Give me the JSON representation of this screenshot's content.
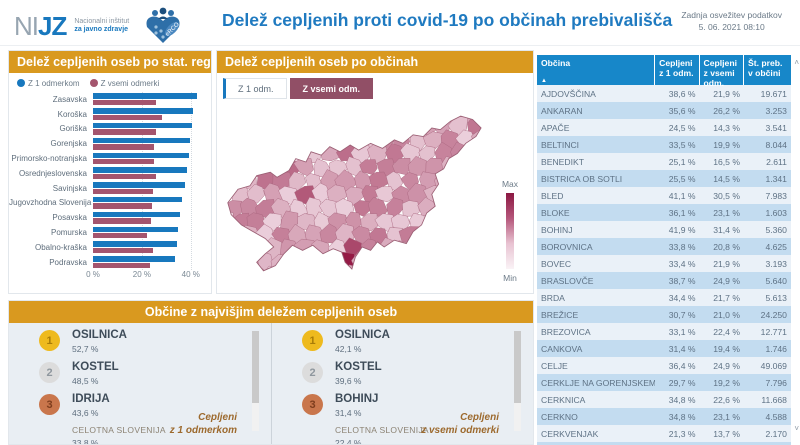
{
  "header": {
    "logo_ni": "NI",
    "logo_jz": "JZ",
    "logo_sub1": "Nacionalni inštitut",
    "logo_sub2": "za javno zdravje",
    "erco_label": "eRCO",
    "title": "Delež cepljenih proti covid-19 po občinah prebivališča",
    "refresh_label": "Zadnja osvežitev podatkov",
    "refresh_time": "5. 06. 2021 08:10"
  },
  "colors": {
    "accent_orange": "#d9991f",
    "bar_blue": "#1878be",
    "bar_maroon": "#a4556e",
    "table_header_blue": "#1787c9",
    "map_max": "#8c1843",
    "map_min": "#faf3f6",
    "button_active_maroon": "#914f66"
  },
  "region_panel": {
    "title": "Delež cepljenih oseb po stat. regijah",
    "legend": [
      {
        "label": "Z 1 odmerkom",
        "color": "#1878be"
      },
      {
        "label": "Z vsemi odmerki",
        "color": "#a4556e"
      }
    ]
  },
  "chart_data": {
    "type": "bar",
    "orientation": "horizontal",
    "title": "Delež cepljenih oseb po stat. regijah",
    "categories": [
      "Zasavska",
      "Koroška",
      "Goriška",
      "Gorenjska",
      "Primorsko-notranjska",
      "Osrednjeslovenska",
      "Savinjska",
      "Jugovzhodna Slovenija",
      "Posavska",
      "Pomurska",
      "Obalno-kraška",
      "Podravska"
    ],
    "series": [
      {
        "name": "Z 1 odmerkom",
        "color": "#1878be",
        "values": [
          39.5,
          38.2,
          37.9,
          37.1,
          36.5,
          36.0,
          35.2,
          33.8,
          33.3,
          32.4,
          32.0,
          31.3
        ]
      },
      {
        "name": "Z vsemi odmerki",
        "color": "#a4556e",
        "values": [
          24.1,
          26.2,
          23.9,
          23.2,
          23.2,
          23.9,
          22.7,
          22.4,
          22.3,
          20.5,
          22.9,
          21.8
        ]
      }
    ],
    "xlim": [
      0,
      45
    ],
    "xticks": [
      {
        "value": 0,
        "label": "0 %"
      },
      {
        "value": 20,
        "label": "20 %"
      },
      {
        "value": 40,
        "label": "40 %"
      }
    ],
    "grid": "dotted vertical at 20% and 40%",
    "legend_position": "top-left"
  },
  "map_panel": {
    "title": "Delež cepljenih oseb po občinah",
    "buttons": [
      {
        "label": "Z 1 odm.",
        "active": false
      },
      {
        "label": "Z vsemi odm.",
        "active": true
      }
    ],
    "legend_max": "Max",
    "legend_min": "Min"
  },
  "top_panel": {
    "title": "Občine z najvišjim deležem cepljenih oseb",
    "lists": [
      {
        "items": [
          {
            "rank": "1",
            "name": "OSILNICA",
            "value": "52,7 %"
          },
          {
            "rank": "2",
            "name": "KOSTEL",
            "value": "48,5 %"
          },
          {
            "rank": "3",
            "name": "IDRIJA",
            "value": "43,6 %"
          }
        ],
        "total_label": "CELOTNA SLOVENIJA",
        "total_value": "33,8 %",
        "caption_line1": "Cepljeni",
        "caption_line2": "z 1 odmerkom"
      },
      {
        "items": [
          {
            "rank": "1",
            "name": "OSILNICA",
            "value": "42,1 %"
          },
          {
            "rank": "2",
            "name": "KOSTEL",
            "value": "39,6 %"
          },
          {
            "rank": "3",
            "name": "BOHINJ",
            "value": "31,4 %"
          }
        ],
        "total_label": "CELOTNA SLOVENIJA",
        "total_value": "22,4 %",
        "caption_line1": "Cepljeni",
        "caption_line2": "z vsemi odmerki"
      }
    ]
  },
  "table": {
    "columns": [
      "Občina",
      "Cepljeni z 1 odm.",
      "Cepljeni z vsemi odm.",
      "Št. preb. v občini"
    ],
    "sort_icon": "▲",
    "scroll_up_icon": "˄",
    "scroll_down_icon": "˅",
    "rows": [
      [
        "AJDOVŠČINA",
        "38,6 %",
        "21,9 %",
        "19.671"
      ],
      [
        "ANKARAN",
        "35,6 %",
        "26,2 %",
        "3.253"
      ],
      [
        "APAČE",
        "24,5 %",
        "14,3 %",
        "3.541"
      ],
      [
        "BELTINCI",
        "33,5 %",
        "19,9 %",
        "8.044"
      ],
      [
        "BENEDIKT",
        "25,1 %",
        "16,5 %",
        "2.611"
      ],
      [
        "BISTRICA OB SOTLI",
        "25,5 %",
        "14,5 %",
        "1.341"
      ],
      [
        "BLED",
        "41,1 %",
        "30,5 %",
        "7.983"
      ],
      [
        "BLOKE",
        "36,1 %",
        "23,1 %",
        "1.603"
      ],
      [
        "BOHINJ",
        "41,9 %",
        "31,4 %",
        "5.360"
      ],
      [
        "BOROVNICA",
        "33,8 %",
        "20,8 %",
        "4.625"
      ],
      [
        "BOVEC",
        "33,4 %",
        "21,9 %",
        "3.193"
      ],
      [
        "BRASLOVČE",
        "38,7 %",
        "24,9 %",
        "5.640"
      ],
      [
        "BRDA",
        "34,4 %",
        "21,7 %",
        "5.613"
      ],
      [
        "BREŽICE",
        "30,7 %",
        "21,0 %",
        "24.250"
      ],
      [
        "BREZOVICA",
        "33,1 %",
        "22,4 %",
        "12.771"
      ],
      [
        "CANKOVA",
        "31,4 %",
        "19,4 %",
        "1.746"
      ],
      [
        "CELJE",
        "36,4 %",
        "24,9 %",
        "49.069"
      ],
      [
        "CERKLJE NA GORENJSKEM",
        "29,7 %",
        "19,2 %",
        "7.796"
      ],
      [
        "CERKNICA",
        "34,8 %",
        "22,6 %",
        "11.668"
      ],
      [
        "CERKNO",
        "34,8 %",
        "23,1 %",
        "4.588"
      ],
      [
        "CERKVENJAK",
        "21,3 %",
        "13,7 %",
        "2.170"
      ]
    ]
  }
}
